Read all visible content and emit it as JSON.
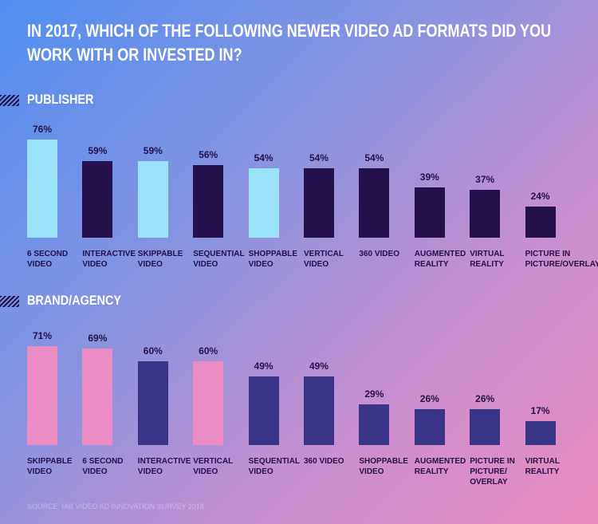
{
  "title": "IN 2017, WHICH OF THE FOLLOWING NEWER VIDEO AD FORMATS DID YOU WORK WITH OR INVESTED IN?",
  "source": "SOURCE: IAB VIDEO AD INNOVATION SURVEY 2018",
  "chart_data": [
    {
      "type": "bar",
      "title": "PUBLISHER",
      "categories": [
        "6 SECOND VIDEO",
        "INTERACTIVE VIDEO",
        "SKIPPABLE VIDEO",
        "SEQUENTIAL VIDEO",
        "SHOPPABLE VIDEO",
        "VERTICAL VIDEO",
        "360 VIDEO",
        "AUGMENTED REALITY",
        "VIRTUAL REALITY",
        "PICTURE IN PICTURE/OVERLAY"
      ],
      "values": [
        76,
        59,
        59,
        56,
        54,
        54,
        54,
        39,
        37,
        24
      ],
      "value_labels": [
        "76%",
        "59%",
        "59%",
        "56%",
        "54%",
        "54%",
        "54%",
        "39%",
        "37%",
        "24%"
      ],
      "colors": [
        "#9be3fb",
        "#24104a",
        "#9be3fb",
        "#24104a",
        "#9be3fb",
        "#24104a",
        "#24104a",
        "#24104a",
        "#24104a",
        "#24104a"
      ]
    },
    {
      "type": "bar",
      "title": "BRAND/AGENCY",
      "categories": [
        "SKIPPABLE VIDEO",
        "6 SECOND VIDEO",
        "INTERACTIVE VIDEO",
        "VERTICAL VIDEO",
        "SEQUENTIAL VIDEO",
        "360 VIDEO",
        "SHOPPABLE VIDEO",
        "AUGMENTED REALITY",
        "PICTURE IN PICTURE/ OVERLAY",
        "VIRTUAL REALITY"
      ],
      "values": [
        71,
        69,
        60,
        60,
        49,
        49,
        29,
        26,
        26,
        17
      ],
      "value_labels": [
        "71%",
        "69%",
        "60%",
        "60%",
        "49%",
        "49%",
        "29%",
        "26%",
        "26%",
        "17%"
      ],
      "colors": [
        "#ec8cc4",
        "#ec8cc4",
        "#3a3488",
        "#ec8cc4",
        "#3a3488",
        "#3a3488",
        "#3a3488",
        "#3a3488",
        "#3a3488",
        "#3a3488"
      ]
    }
  ]
}
